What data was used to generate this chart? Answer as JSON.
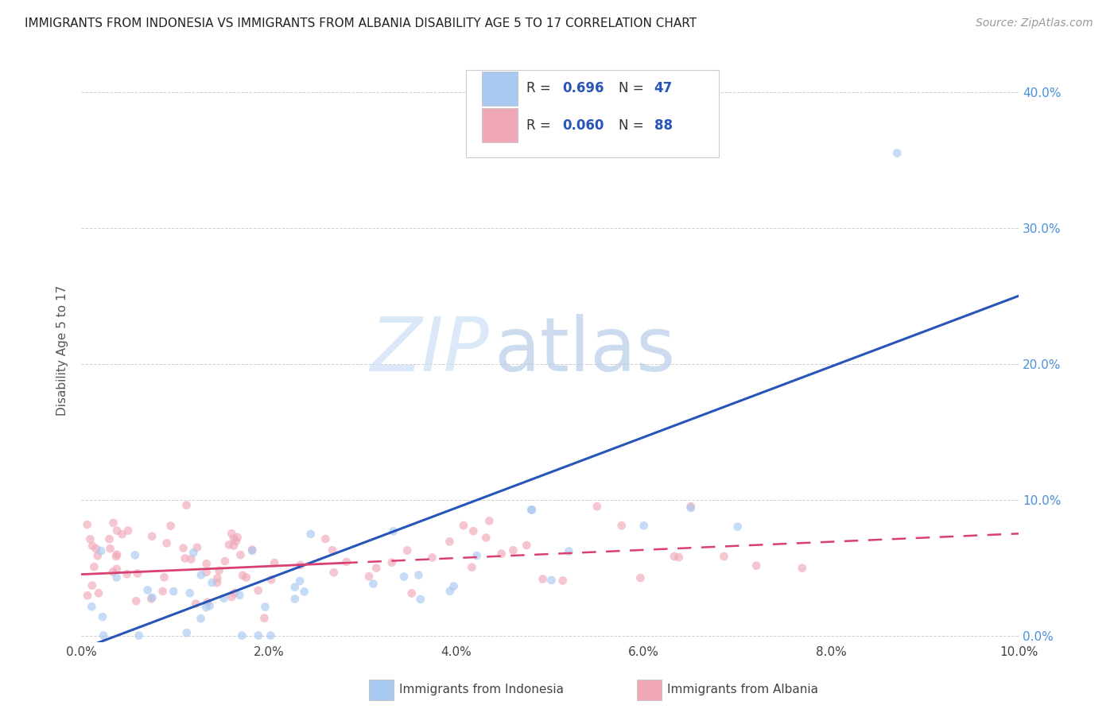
{
  "title": "IMMIGRANTS FROM INDONESIA VS IMMIGRANTS FROM ALBANIA DISABILITY AGE 5 TO 17 CORRELATION CHART",
  "source": "Source: ZipAtlas.com",
  "xlabel_bottom": "Immigrants from Indonesia",
  "xlabel_bottom2": "Immigrants from Albania",
  "ylabel": "Disability Age 5 to 17",
  "xlim": [
    0.0,
    0.1
  ],
  "ylim": [
    -0.005,
    0.425
  ],
  "xticks": [
    0.0,
    0.02,
    0.04,
    0.06,
    0.08,
    0.1
  ],
  "yticks": [
    0.0,
    0.1,
    0.2,
    0.3,
    0.4
  ],
  "color_indonesia": "#a8c8f0",
  "color_albania": "#f0a8b8",
  "line_color_indonesia": "#2855b8",
  "line_color_albania": "#d84070",
  "R_indonesia": 0.696,
  "N_indonesia": 47,
  "R_albania": 0.06,
  "N_albania": 88,
  "watermark_zip": "ZIP",
  "watermark_atlas": "atlas",
  "background_color": "#ffffff",
  "grid_color": "#d0d0d0",
  "scatter_alpha": 0.65,
  "scatter_size": 60,
  "legend_blue_color": "#2855b8",
  "legend_pink_color": "#d84070",
  "right_axis_color": "#4a90d9",
  "left_axis_label_color": "#555555"
}
